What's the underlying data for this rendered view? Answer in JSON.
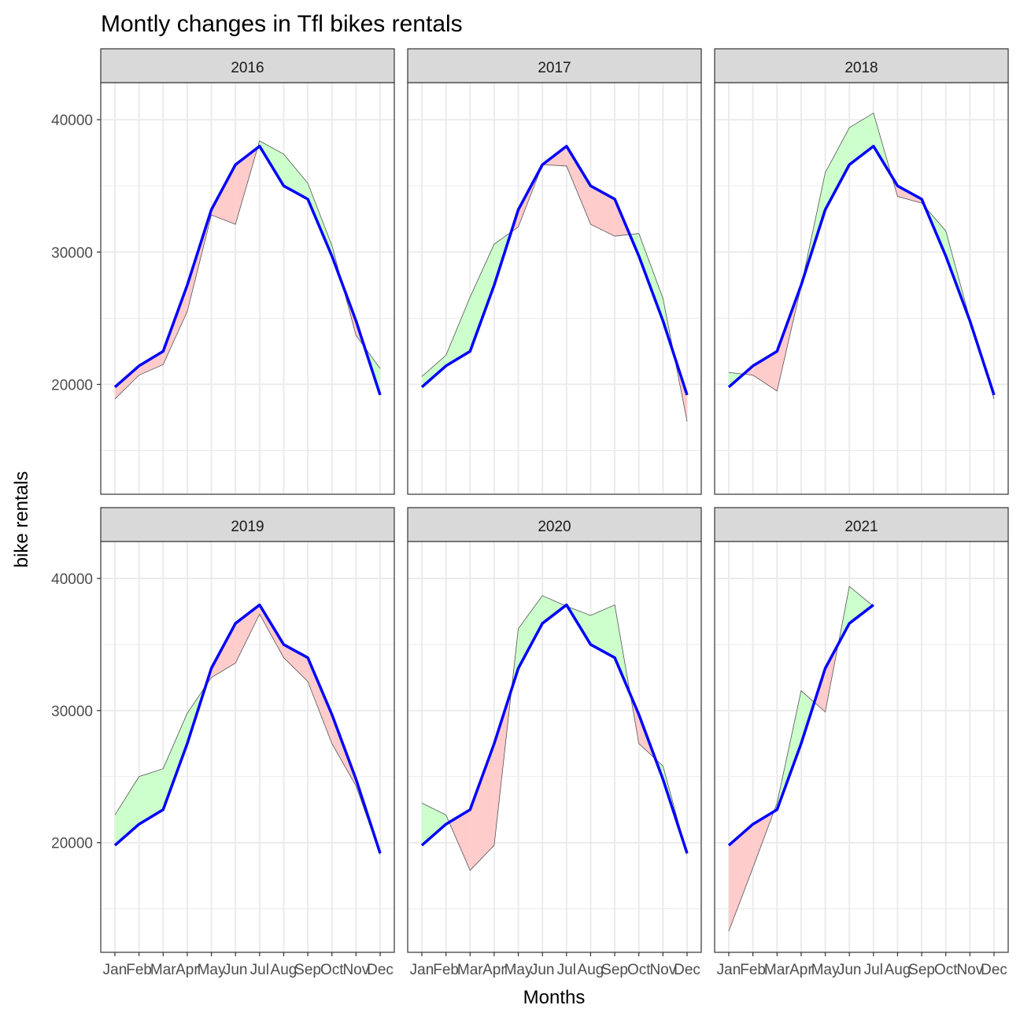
{
  "chart_data": {
    "type": "line",
    "title": "Montly changes in Tfl bikes rentals",
    "xlabel": "Months",
    "ylabel": "bike rentals",
    "categories": [
      "Jan",
      "Feb",
      "Mar",
      "Apr",
      "May",
      "Jun",
      "Jul",
      "Aug",
      "Sep",
      "Oct",
      "Nov",
      "Dec"
    ],
    "ylim": [
      11700,
      42800
    ],
    "yticks": [
      20000,
      30000,
      40000
    ],
    "grid": true,
    "facet_layout": "3 columns x 2 rows",
    "colors": {
      "expected_line": "#0000ff",
      "above_fill": "#ccffcc",
      "below_fill": "#ffcccc",
      "strip_bg": "#d9d9d9",
      "grid": "#ebebeb"
    },
    "expected": [
      19800,
      21400,
      22500,
      27500,
      33200,
      36600,
      38000,
      35000,
      34000,
      29700,
      24800,
      19200
    ],
    "facets": [
      {
        "label": "2016",
        "actual": [
          18900,
          20700,
          21500,
          25500,
          32800,
          32100,
          38400,
          37400,
          35200,
          30500,
          23700,
          21200
        ]
      },
      {
        "label": "2017",
        "actual": [
          20600,
          22200,
          26600,
          30600,
          31900,
          36600,
          36500,
          32100,
          31200,
          31400,
          26500,
          17200
        ]
      },
      {
        "label": "2018",
        "actual": [
          20900,
          20700,
          19500,
          27400,
          36000,
          39400,
          40500,
          34200,
          33700,
          31600,
          24900,
          18900
        ]
      },
      {
        "label": "2019",
        "actual": [
          22100,
          25000,
          25600,
          29800,
          32500,
          33600,
          37300,
          34000,
          32200,
          27500,
          24300,
          19100
        ]
      },
      {
        "label": "2020",
        "actual": [
          23000,
          22100,
          17900,
          19800,
          36200,
          38700,
          37900,
          37200,
          38000,
          27500,
          25800,
          19100
        ]
      },
      {
        "label": "2021",
        "actual": [
          13300,
          18100,
          23000,
          31500,
          29900,
          39400,
          37900
        ]
      }
    ]
  }
}
